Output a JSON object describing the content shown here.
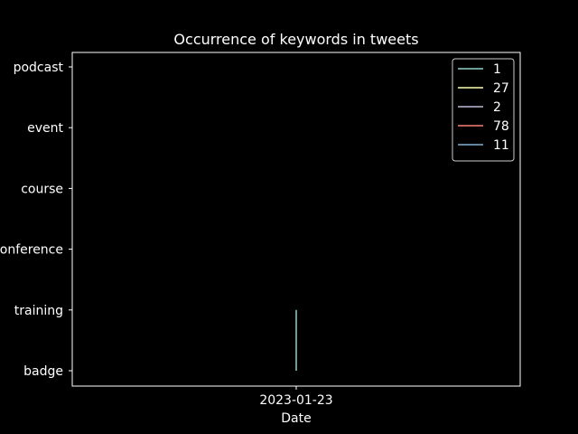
{
  "chart_data": {
    "type": "line",
    "title": "Occurrence of keywords in tweets",
    "xlabel": "Date",
    "ylabel": "",
    "x_ticks": [
      "2023-01-23"
    ],
    "y_categories": [
      "badge",
      "training",
      "conference",
      "course",
      "event",
      "podcast"
    ],
    "series": [
      {
        "name": "1",
        "color": "#8dd3c7",
        "points": [
          {
            "x": "2023-01-23",
            "y": "badge"
          },
          {
            "x": "2023-01-23",
            "y": "training"
          }
        ]
      },
      {
        "name": "27",
        "color": "#feffb3",
        "points": []
      },
      {
        "name": "2",
        "color": "#bfbbd9",
        "points": []
      },
      {
        "name": "78",
        "color": "#fa8174",
        "points": []
      },
      {
        "name": "11",
        "color": "#81b1d2",
        "points": []
      }
    ],
    "grid": false,
    "legend_position": "top-right",
    "background": "#000000",
    "foreground": "#ffffff"
  }
}
